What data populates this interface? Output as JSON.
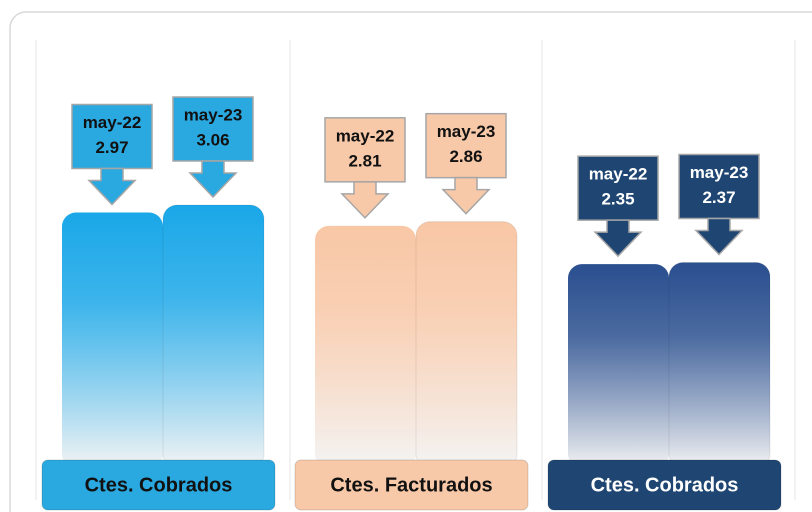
{
  "chart_data": {
    "type": "bar",
    "categories": [
      "Ctes. Cobrados",
      "Ctes. Facturados",
      "Ctes. Cobrados"
    ],
    "colors": [
      "#1aa7e8",
      "#f8c7a6",
      "#2a4f8f"
    ],
    "label_colors": [
      "#2aa9e0",
      "#f8c9a8",
      "#1f4673"
    ],
    "text_colors": [
      "#111111",
      "#111111",
      "#ffffff"
    ],
    "series": [
      {
        "name": "may-22",
        "values": [
          2.97,
          2.81,
          2.35
        ]
      },
      {
        "name": "may-23",
        "values": [
          3.06,
          2.86,
          2.37
        ]
      }
    ]
  }
}
